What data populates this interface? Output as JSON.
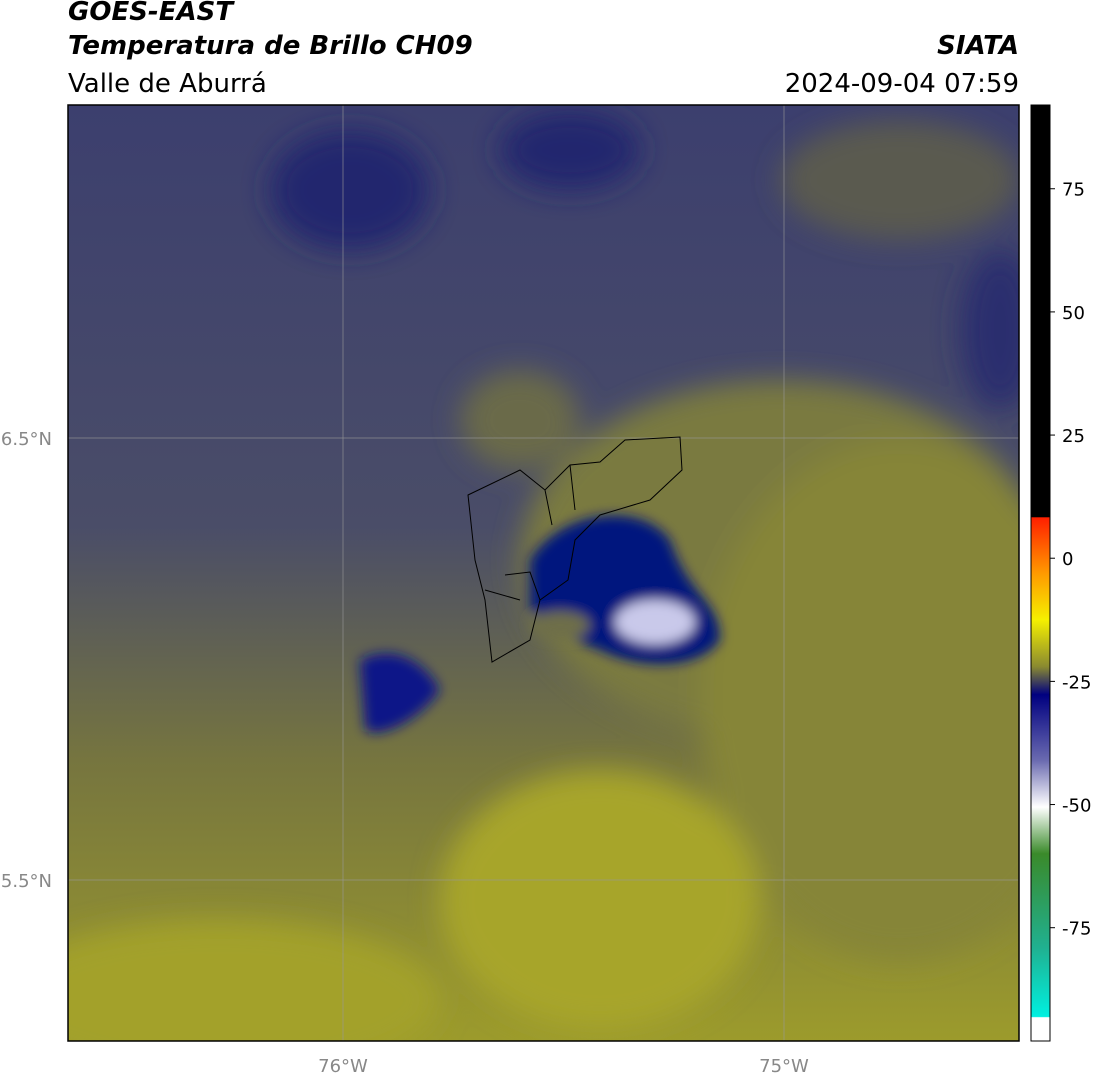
{
  "header": {
    "title": "GOES-EAST",
    "subtitle": "Temperatura de Brillo CH09",
    "region": "Valle de Aburrá",
    "source": "SIATA",
    "timestamp": "2024-09-04 07:59"
  },
  "map": {
    "lat_labels": [
      "6.5°N",
      "5.5°N"
    ],
    "lon_labels": [
      "76°W",
      "75°W"
    ]
  },
  "colorbar": {
    "lim": [
      -98,
      92
    ],
    "ticks": [
      75,
      50,
      25,
      0,
      -25,
      -50,
      -75
    ]
  }
}
